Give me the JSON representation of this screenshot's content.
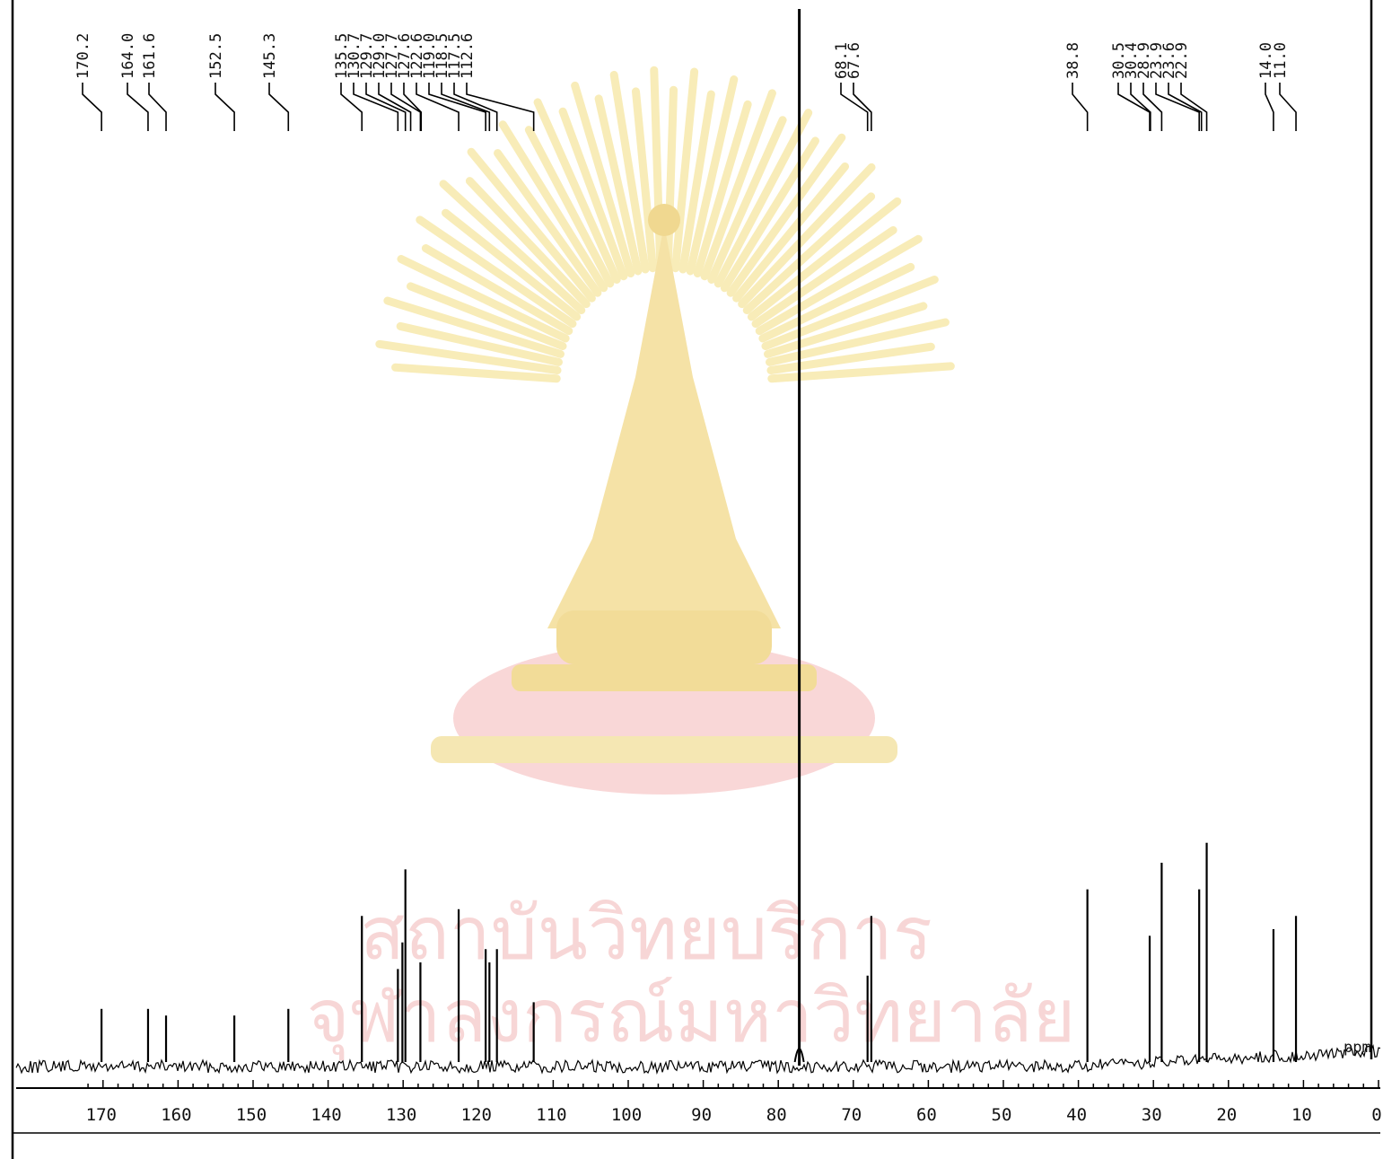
{
  "chart_data": {
    "type": "line",
    "title": "",
    "xlabel": "",
    "ylabel": "",
    "x_unit": "ppm",
    "xlim": [
      172,
      0
    ],
    "x_reversed": true,
    "ylim": [
      0,
      1
    ],
    "grid": false,
    "x_major_ticks": [
      170,
      160,
      150,
      140,
      130,
      120,
      110,
      100,
      90,
      80,
      70,
      60,
      50,
      40,
      30,
      20,
      10,
      0
    ],
    "x_tick_labels": [
      "170",
      "160",
      "150",
      "140",
      "130",
      "120",
      "110",
      "100",
      "90",
      "80",
      "70",
      "60",
      "50",
      "40",
      "30",
      "20",
      "10",
      "0"
    ],
    "peak_labels": [
      "170.2",
      "164.0",
      "161.6",
      "152.5",
      "145.3",
      "135.5",
      "130.7",
      "129.7",
      "129.0",
      "127.7",
      "127.6",
      "122.6",
      "119.0",
      "118.5",
      "117.5",
      "112.6",
      "68.1",
      "67.6",
      "38.8",
      "30.5",
      "30.4",
      "28.9",
      "23.9",
      "23.6",
      "22.9",
      "14.0",
      "11.0"
    ],
    "peaks": [
      {
        "x": 170.2,
        "y": 0.08
      },
      {
        "x": 164.0,
        "y": 0.08
      },
      {
        "x": 161.6,
        "y": 0.07
      },
      {
        "x": 152.5,
        "y": 0.07
      },
      {
        "x": 145.3,
        "y": 0.08
      },
      {
        "x": 135.5,
        "y": 0.22
      },
      {
        "x": 130.7,
        "y": 0.14
      },
      {
        "x": 130.1,
        "y": 0.18
      },
      {
        "x": 129.7,
        "y": 0.29
      },
      {
        "x": 127.7,
        "y": 0.15
      },
      {
        "x": 122.6,
        "y": 0.23
      },
      {
        "x": 119.0,
        "y": 0.17
      },
      {
        "x": 118.5,
        "y": 0.15
      },
      {
        "x": 117.5,
        "y": 0.17
      },
      {
        "x": 112.6,
        "y": 0.09
      },
      {
        "x": 77.2,
        "y": 1.0
      },
      {
        "x": 68.1,
        "y": 0.13
      },
      {
        "x": 67.6,
        "y": 0.22
      },
      {
        "x": 38.8,
        "y": 0.26
      },
      {
        "x": 30.5,
        "y": 0.19
      },
      {
        "x": 28.9,
        "y": 0.3
      },
      {
        "x": 23.9,
        "y": 0.26
      },
      {
        "x": 22.9,
        "y": 0.33
      },
      {
        "x": 14.0,
        "y": 0.2
      },
      {
        "x": 11.0,
        "y": 0.22
      }
    ]
  },
  "watermark": {
    "line1": "สถาบันวิทยบริการ",
    "line2": "จุฬาลงกรณ์มหาวิทยาลัย",
    "color": "#f7d6d6",
    "seal_color": "#f8ecb8"
  }
}
